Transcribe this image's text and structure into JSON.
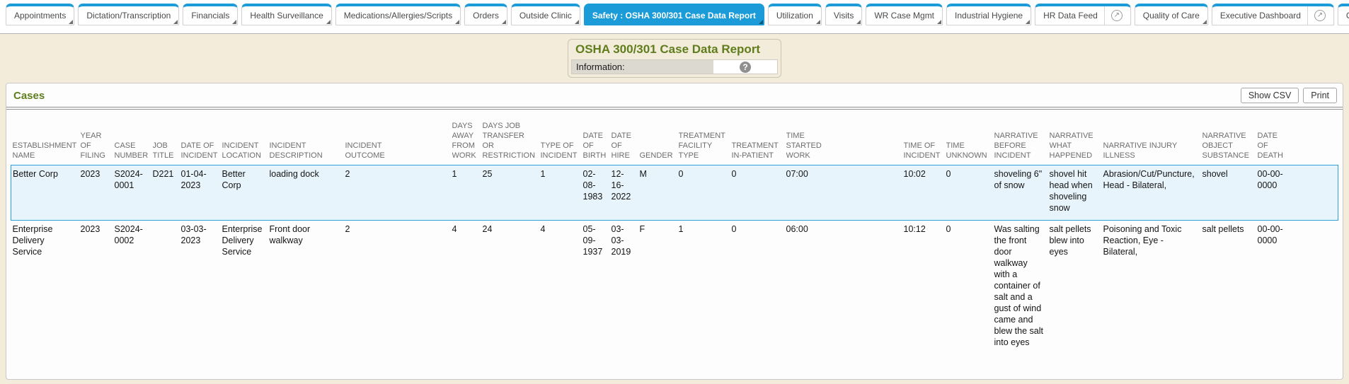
{
  "tabs": [
    {
      "label": "Appointments",
      "kind": "dropdown"
    },
    {
      "label": "Dictation/Transcription",
      "kind": "dropdown"
    },
    {
      "label": "Financials",
      "kind": "dropdown"
    },
    {
      "label": "Health Surveillance",
      "kind": "dropdown"
    },
    {
      "label": "Medications/Allergies/Scripts",
      "kind": "dropdown"
    },
    {
      "label": "Orders",
      "kind": "dropdown"
    },
    {
      "label": "Outside Clinic",
      "kind": "dropdown"
    },
    {
      "label": "Safety : OSHA 300/301 Case Data Report",
      "kind": "dropdown",
      "active": true
    },
    {
      "label": "Utilization",
      "kind": "dropdown"
    },
    {
      "label": "Visits",
      "kind": "dropdown"
    },
    {
      "label": "WR Case Mgmt",
      "kind": "dropdown"
    },
    {
      "label": "Industrial Hygiene",
      "kind": "dropdown"
    },
    {
      "label": "HR Data Feed",
      "kind": "external"
    },
    {
      "label": "Quality of Care",
      "kind": "dropdown"
    },
    {
      "label": "Executive Dashboard",
      "kind": "external"
    },
    {
      "label": "C",
      "kind": "partial"
    }
  ],
  "header": {
    "title": "OSHA 300/301 Case Data Report",
    "info_label": "Information:",
    "help_icon": "?"
  },
  "cases": {
    "title": "Cases",
    "buttons": {
      "show_csv": "Show CSV",
      "print": "Print"
    }
  },
  "table": {
    "columns": [
      "ESTABLISHMENT NAME",
      "YEAR OF FILING",
      "CASE NUMBER",
      "JOB TITLE",
      "DATE OF INCIDENT",
      "INCIDENT LOCATION",
      "INCIDENT DESCRIPTION",
      "INCIDENT OUTCOME",
      "DAYS AWAY FROM WORK",
      "DAYS JOB TRANSFER OR RESTRICTION",
      "TYPE OF INCIDENT",
      "DATE OF BIRTH",
      "DATE OF HIRE",
      "GENDER",
      "TREATMENT FACILITY TYPE",
      "TREATMENT IN-PATIENT",
      "TIME STARTED WORK",
      "TIME OF INCIDENT",
      "TIME UNKNOWN",
      "NARRATIVE BEFORE INCIDENT",
      "NARRATIVE WHAT HAPPENED",
      "NARRATIVE INJURY ILLNESS",
      "NARRATIVE OBJECT SUBSTANCE",
      "DATE OF DEATH"
    ],
    "rows": [
      {
        "highlighted": true,
        "cells": [
          "Better Corp",
          "2023",
          "S2024-0001",
          "D221",
          "01-04-2023",
          "Better Corp",
          "loading dock",
          "2",
          "1",
          "25",
          "1",
          "02-08-1983",
          "12-16-2022",
          "M",
          "0",
          "0",
          "07:00",
          "10:02",
          "0",
          "shoveling 6\" of snow",
          "shovel hit head when shoveling snow",
          "Abrasion/Cut/Puncture, Head - Bilateral,",
          "shovel",
          "00-00-0000"
        ]
      },
      {
        "highlighted": false,
        "cells": [
          "Enterprise Delivery Service",
          "2023",
          "S2024-0002",
          "",
          "03-03-2023",
          "Enterprise Delivery Service",
          "Front door walkway",
          "2",
          "4",
          "24",
          "4",
          "05-09-1937",
          "03-03-2019",
          "F",
          "1",
          "0",
          "06:00",
          "10:12",
          "0",
          "Was salting the front door walkway with a container of salt and a gust of wind came and blew the salt into eyes",
          "salt pellets blew into eyes",
          "Poisoning and Toxic Reaction, Eye - Bilateral,",
          "salt pellets",
          "00-00-0000"
        ]
      }
    ]
  },
  "colors": {
    "tab_blue": "#1b9cd8",
    "title_green": "#5f7d1c",
    "page_cream": "#f3ecda",
    "row_highlight_bg": "#e8f4fc",
    "row_highlight_border": "#2d9fd9"
  }
}
